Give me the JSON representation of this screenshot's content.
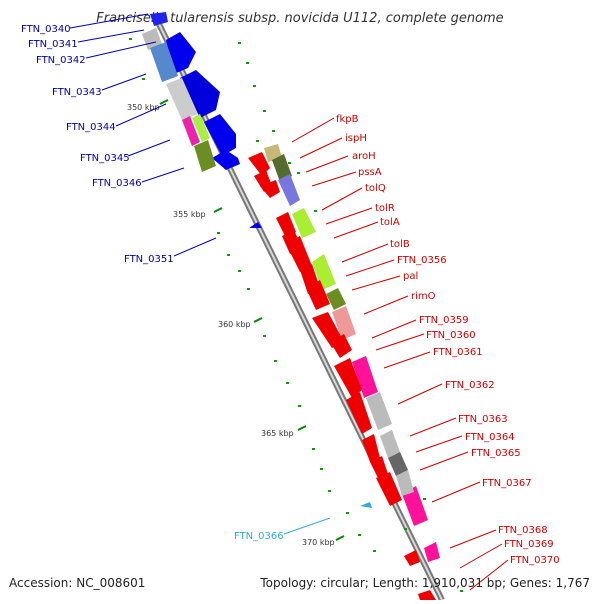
{
  "title": "Francisella tularensis subsp. novicida U112, complete genome",
  "accession": "Accession: NC_008601",
  "summary": "Topology: circular; Length: 1,910,031 bp; Genes: 1,767",
  "colors": {
    "left_labels": "#0000aa",
    "right_labels": "#cc0000",
    "highlight_label": "#33aadd",
    "backbone": "#888888",
    "tick": "#008800"
  },
  "scale_labels": [
    "350 kbp",
    "355 kbp",
    "360 kbp",
    "365 kbp",
    "370 kbp"
  ],
  "left_labels": [
    "FTN_0340",
    "FTN_0341",
    "FTN_0342",
    "FTN_0343",
    "FTN_0344",
    "FTN_0345",
    "FTN_0346",
    "FTN_0351"
  ],
  "highlight_label": "FTN_0366",
  "right_labels": [
    "fkpB",
    "ispH",
    "aroH",
    "pssA",
    "tolQ",
    "tolR",
    "tolA",
    "tolB",
    "FTN_0356",
    "pal",
    "rimO",
    "FTN_0359",
    "FTN_0360",
    "FTN_0361",
    "FTN_0362",
    "FTN_0363",
    "FTN_0364",
    "FTN_0365",
    "FTN_0367",
    "FTN_0368",
    "FTN_0369",
    "FTN_0370"
  ]
}
